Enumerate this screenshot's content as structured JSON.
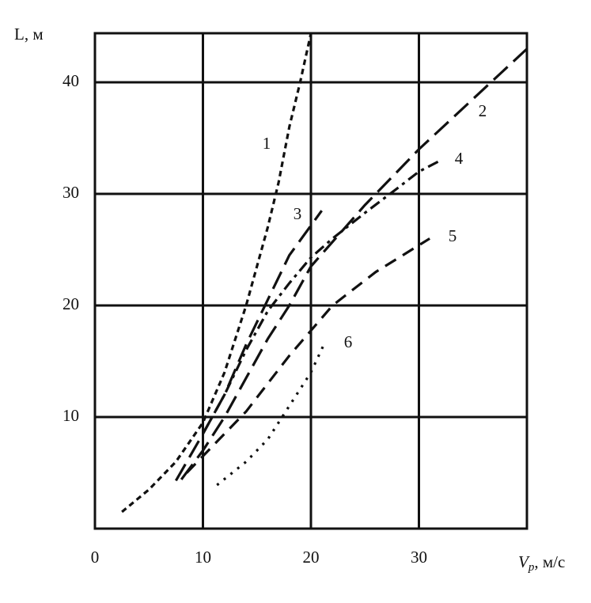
{
  "chart_data": {
    "type": "line",
    "y_label": "L, м",
    "x_label": {
      "symbol": "V",
      "subscript": "p",
      "unit": ", м/с"
    },
    "xlim": [
      0,
      40
    ],
    "ylim": [
      0,
      44.4
    ],
    "xticks": [
      0,
      10,
      20,
      30
    ],
    "yticks": [
      10,
      20,
      30,
      40
    ],
    "grid": true,
    "series": [
      {
        "name": "1",
        "color": "#111111",
        "style": "short-dash",
        "x": [
          2.5,
          5,
          7.5,
          10,
          12,
          14,
          16,
          17,
          18,
          19,
          20
        ],
        "values": [
          1.5,
          3.5,
          6,
          9.5,
          14,
          20,
          27,
          31,
          36,
          40,
          44.4
        ]
      },
      {
        "name": "2",
        "color": "#111111",
        "style": "long-dash",
        "x": [
          8,
          10,
          12,
          14,
          16,
          18,
          20,
          25,
          30,
          35,
          40
        ],
        "values": [
          4.4,
          7,
          10,
          13.5,
          17,
          20,
          23.5,
          29,
          34,
          38.5,
          43
        ]
      },
      {
        "name": "3",
        "color": "#111111",
        "style": "long-dash",
        "x": [
          7.5,
          10,
          12,
          14,
          16,
          18,
          21
        ],
        "values": [
          4.3,
          8.5,
          12,
          16.5,
          20.5,
          24.5,
          28.5
        ]
      },
      {
        "name": "4",
        "color": "#111111",
        "style": "dash-dot",
        "x": [
          10,
          12,
          14,
          16,
          18,
          20,
          22,
          25,
          28,
          30,
          32
        ],
        "values": [
          8.5,
          12,
          16,
          19.5,
          22,
          24.3,
          26,
          28.3,
          30.5,
          32,
          33
        ]
      },
      {
        "name": "5",
        "color": "#111111",
        "style": "medium-dash",
        "x": [
          8.5,
          10,
          14,
          18,
          22,
          26,
          31
        ],
        "values": [
          5,
          6.5,
          10.5,
          15.5,
          20,
          23,
          26
        ]
      },
      {
        "name": "6",
        "color": "#111111",
        "style": "dotted",
        "x": [
          11.3,
          14,
          16,
          18,
          20,
          21.2
        ],
        "values": [
          3.9,
          6,
          8,
          11,
          14,
          16.5
        ]
      }
    ]
  }
}
